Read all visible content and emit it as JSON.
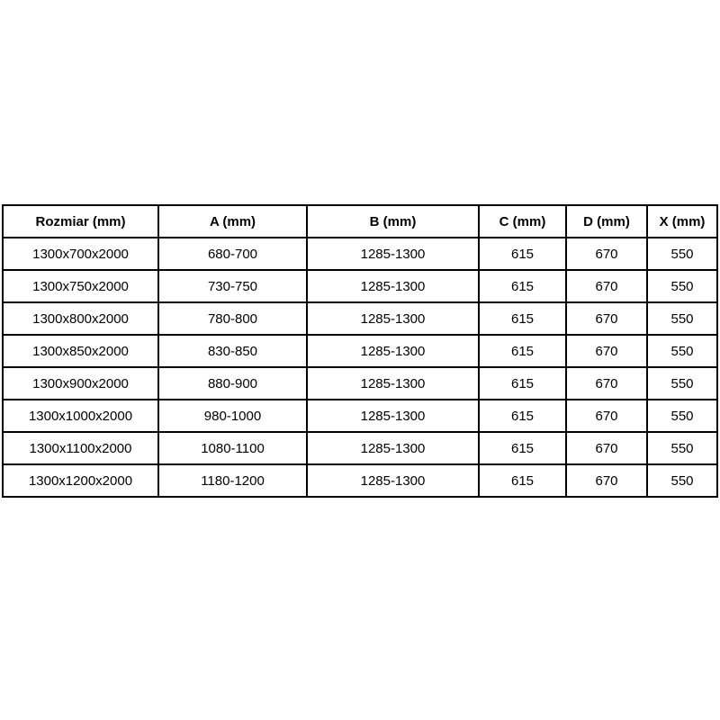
{
  "table": {
    "columns": [
      "Rozmiar (mm)",
      "A (mm)",
      "B (mm)",
      "C (mm)",
      "D (mm)",
      "X (mm)"
    ],
    "rows": [
      [
        "1300x700x2000",
        "680-700",
        "1285-1300",
        "615",
        "670",
        "550"
      ],
      [
        "1300x750x2000",
        "730-750",
        "1285-1300",
        "615",
        "670",
        "550"
      ],
      [
        "1300x800x2000",
        "780-800",
        "1285-1300",
        "615",
        "670",
        "550"
      ],
      [
        "1300x850x2000",
        "830-850",
        "1285-1300",
        "615",
        "670",
        "550"
      ],
      [
        "1300x900x2000",
        "880-900",
        "1285-1300",
        "615",
        "670",
        "550"
      ],
      [
        "1300x1000x2000",
        "980-1000",
        "1285-1300",
        "615",
        "670",
        "550"
      ],
      [
        "1300x1100x2000",
        "1080-1100",
        "1285-1300",
        "615",
        "670",
        "550"
      ],
      [
        "1300x1200x2000",
        "1180-1200",
        "1285-1300",
        "615",
        "670",
        "550"
      ]
    ],
    "border_color": "#000000",
    "text_color": "#000000",
    "background_color": "#ffffff"
  }
}
